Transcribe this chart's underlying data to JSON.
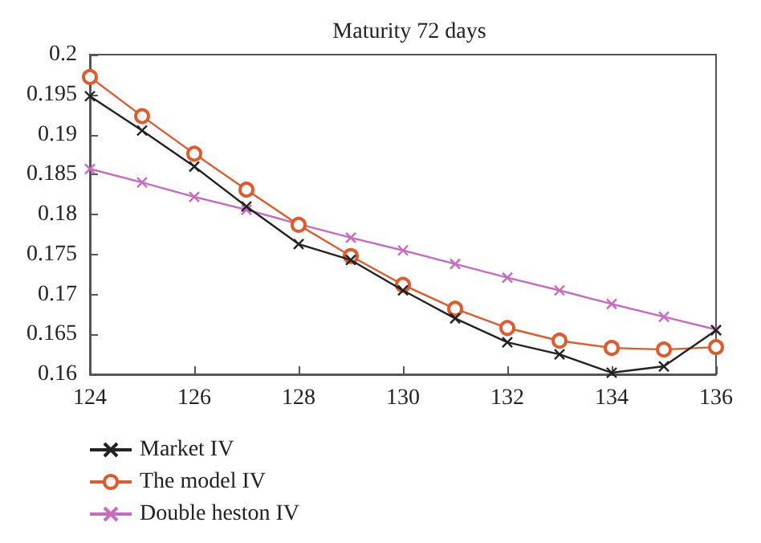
{
  "chart_data": {
    "type": "line",
    "title": "Maturity 72 days",
    "x": [
      124,
      125,
      126,
      127,
      128,
      129,
      130,
      131,
      132,
      133,
      134,
      135,
      136
    ],
    "xlim": [
      124,
      136
    ],
    "xticks": [
      124,
      126,
      128,
      130,
      132,
      134,
      136
    ],
    "ylim": [
      0.16,
      0.2
    ],
    "yticks": [
      0.16,
      0.165,
      0.17,
      0.175,
      0.18,
      0.185,
      0.19,
      0.195,
      0.2
    ],
    "grid": false,
    "legend": "bottom",
    "line_style": "solid",
    "series": [
      {
        "name": "Market IV",
        "color": "#222222",
        "marker": "cross",
        "values": [
          0.1948,
          0.1905,
          0.186,
          0.181,
          0.1763,
          0.1743,
          0.1705,
          0.167,
          0.164,
          0.1625,
          0.1602,
          0.161,
          0.1655
        ]
      },
      {
        "name": "The model IV",
        "color": "#e05a2b",
        "marker": "circle",
        "values": [
          0.1972,
          0.1923,
          0.1876,
          0.1831,
          0.1787,
          0.1748,
          0.1712,
          0.1682,
          0.1658,
          0.1642,
          0.1633,
          0.1631,
          0.1634
        ]
      },
      {
        "name": "Double heston IV",
        "color": "#c86ac0",
        "marker": "cross",
        "values": [
          0.1857,
          0.184,
          0.1822,
          0.1806,
          0.1788,
          0.1771,
          0.1755,
          0.1738,
          0.1721,
          0.1705,
          0.1688,
          0.1672,
          0.1656
        ]
      }
    ]
  }
}
